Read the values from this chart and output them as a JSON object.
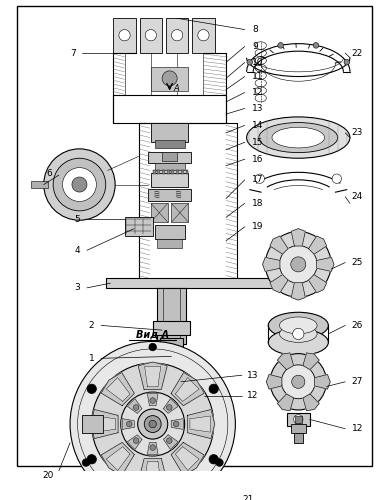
{
  "bg": "#f0f0f0",
  "lc": "#1a1a1a",
  "figure_width": 3.89,
  "figure_height": 5.0,
  "dpi": 100
}
